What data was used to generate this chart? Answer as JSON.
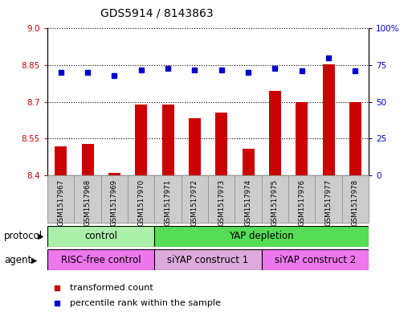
{
  "title": "GDS5914 / 8143863",
  "samples": [
    "GSM1517967",
    "GSM1517968",
    "GSM1517969",
    "GSM1517970",
    "GSM1517971",
    "GSM1517972",
    "GSM1517973",
    "GSM1517974",
    "GSM1517975",
    "GSM1517976",
    "GSM1517977",
    "GSM1517978"
  ],
  "transformed_counts": [
    8.52,
    8.53,
    8.41,
    8.69,
    8.688,
    8.635,
    8.655,
    8.51,
    8.745,
    8.7,
    8.855,
    8.7
  ],
  "percentile_ranks": [
    70,
    70,
    68,
    72,
    73,
    72,
    72,
    70,
    73,
    71,
    80,
    71
  ],
  "ylim_left": [
    8.4,
    9.0
  ],
  "ylim_right": [
    0,
    100
  ],
  "yticks_left": [
    8.4,
    8.55,
    8.7,
    8.85,
    9.0
  ],
  "yticks_right": [
    0,
    25,
    50,
    75,
    100
  ],
  "bar_color": "#cc0000",
  "dot_color": "#0000cc",
  "bar_bottom": 8.4,
  "protocol_groups": [
    {
      "label": "control",
      "start": 0,
      "end": 4,
      "color": "#aaf0aa"
    },
    {
      "label": "YAP depletion",
      "start": 4,
      "end": 12,
      "color": "#55dd55"
    }
  ],
  "agent_groups": [
    {
      "label": "RISC-free control",
      "start": 0,
      "end": 4,
      "color": "#ee77ee"
    },
    {
      "label": "siYAP construct 1",
      "start": 4,
      "end": 8,
      "color": "#ddaadd"
    },
    {
      "label": "siYAP construct 2",
      "start": 8,
      "end": 12,
      "color": "#ee77ee"
    }
  ],
  "legend_items": [
    {
      "label": "transformed count",
      "color": "#cc0000"
    },
    {
      "label": "percentile rank within the sample",
      "color": "#0000cc"
    }
  ],
  "xlabel_protocol": "protocol",
  "xlabel_agent": "agent",
  "label_color_left": "#cc0000",
  "label_color_right": "#0000cc",
  "tick_label_size": 7.5,
  "title_fontsize": 10,
  "sample_bg_color": "#cccccc",
  "sample_edge_color": "#999999"
}
